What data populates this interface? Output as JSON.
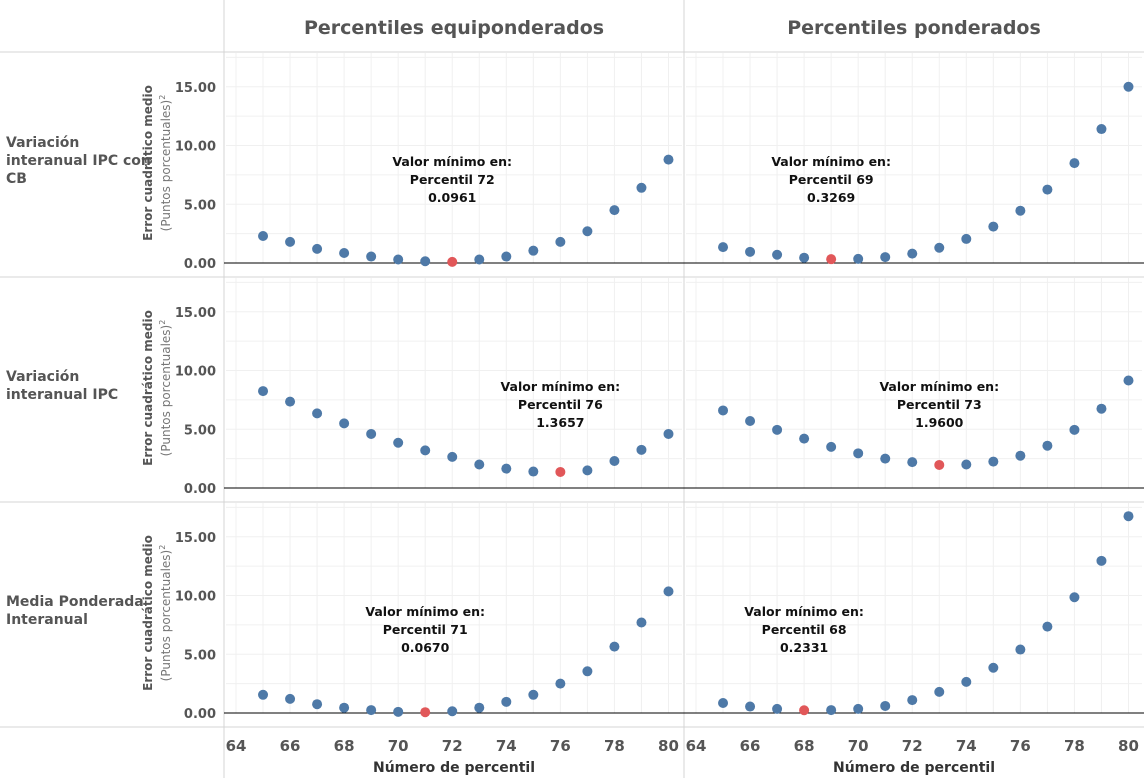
{
  "chart_data": {
    "type": "scatter",
    "columns": [
      "Percentiles equiponderados",
      "Percentiles ponderados"
    ],
    "rows": [
      "Variación interanual IPC con CB",
      "Variación interanual IPC",
      "Media Ponderada Interanual"
    ],
    "ylabel": "Error cuadrático medio",
    "ylabel_sub": "(Puntos porcentuales)",
    "ylabel_sup": "2",
    "xlabel": "Número de percentil",
    "ylim": [
      0,
      17.5
    ],
    "xlim": [
      64,
      80.5
    ],
    "yticks": [
      "0.00",
      "5.00",
      "10.00",
      "15.00"
    ],
    "xticks": [
      64,
      66,
      68,
      70,
      72,
      74,
      76,
      78,
      80
    ],
    "normal_color": "#4e79a7",
    "min_color": "#e15759",
    "x": [
      65,
      66,
      67,
      68,
      69,
      70,
      71,
      72,
      73,
      74,
      75,
      76,
      77,
      78,
      79,
      80
    ],
    "panels": [
      {
        "row": 0,
        "col": 0,
        "values": [
          2.3,
          1.8,
          1.2,
          0.85,
          0.55,
          0.3,
          0.15,
          0.0961,
          0.3,
          0.55,
          1.05,
          1.8,
          2.7,
          4.5,
          6.4,
          8.8
        ],
        "min_x": 72,
        "annotation": {
          "line1": "Valor mínimo en:",
          "line2": "Percentil 72",
          "line3": "0.0961"
        }
      },
      {
        "row": 0,
        "col": 1,
        "values": [
          1.35,
          0.95,
          0.7,
          0.45,
          0.3269,
          0.35,
          0.5,
          0.8,
          1.3,
          2.05,
          3.1,
          4.45,
          6.25,
          8.5,
          11.4,
          15.0
        ],
        "min_x": 69,
        "annotation": {
          "line1": "Valor mínimo en:",
          "line2": "Percentil 69",
          "line3": "0.3269"
        }
      },
      {
        "row": 1,
        "col": 0,
        "values": [
          8.25,
          7.35,
          6.35,
          5.5,
          4.6,
          3.85,
          3.2,
          2.65,
          2.0,
          1.65,
          1.4,
          1.3657,
          1.5,
          2.3,
          3.25,
          4.6
        ],
        "min_x": 76,
        "annotation": {
          "line1": "Valor mínimo en:",
          "line2": "Percentil 76",
          "line3": "1.3657"
        }
      },
      {
        "row": 1,
        "col": 1,
        "values": [
          6.6,
          5.7,
          4.95,
          4.2,
          3.5,
          2.95,
          2.5,
          2.2,
          1.96,
          2.0,
          2.25,
          2.75,
          3.6,
          4.95,
          6.75,
          9.15
        ],
        "min_x": 73,
        "annotation": {
          "line1": "Valor mínimo en:",
          "line2": "Percentil 73",
          "line3": "1.9600"
        }
      },
      {
        "row": 2,
        "col": 0,
        "values": [
          1.55,
          1.2,
          0.75,
          0.45,
          0.25,
          0.1,
          0.067,
          0.15,
          0.45,
          0.95,
          1.55,
          2.5,
          3.55,
          5.65,
          7.7,
          10.35
        ],
        "min_x": 71,
        "annotation": {
          "line1": "Valor mínimo en:",
          "line2": "Percentil 71",
          "line3": "0.0670"
        }
      },
      {
        "row": 2,
        "col": 1,
        "values": [
          0.85,
          0.55,
          0.35,
          0.2331,
          0.25,
          0.35,
          0.6,
          1.1,
          1.8,
          2.65,
          3.85,
          5.4,
          7.35,
          9.85,
          12.95,
          16.75
        ],
        "min_x": 68,
        "annotation": {
          "line1": "Valor mínimo en:",
          "line2": "Percentil 68",
          "line3": "0.2331"
        }
      }
    ]
  }
}
